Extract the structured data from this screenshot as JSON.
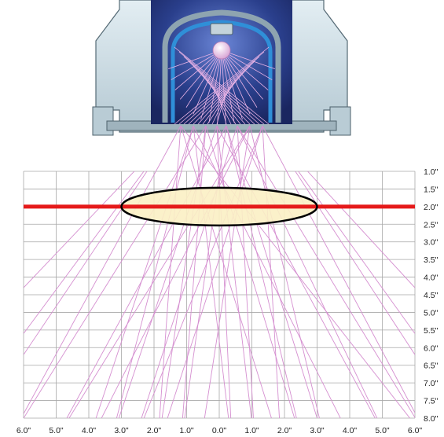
{
  "y_axis": {
    "unit": "inch",
    "labels": [
      "1.0\"",
      "1.5\"",
      "2.0\"",
      "2.5\"",
      "3.0\"",
      "3.5\"",
      "4.0\"",
      "4.5\"",
      "5.0\"",
      "5.5\"",
      "6.0\"",
      "6.5\"",
      "7.0\"",
      "7.5\"",
      "8.0\""
    ]
  },
  "x_axis": {
    "unit": "inch",
    "labels": [
      "6.0\"",
      "5.0\"",
      "4.0\"",
      "3.0\"",
      "2.0\"",
      "1.0\"",
      "0.0\"",
      "1.0\"",
      "2.0\"",
      "3.0\"",
      "4.0\"",
      "5.0\"",
      "6.0\""
    ]
  },
  "highlight": {
    "working_distance": 2.0,
    "line_color": "#e51a1a",
    "ellipse_span": [
      -3.0,
      3.0
    ]
  },
  "light": {
    "ray_color": "#d58fd0",
    "lamp_color": "#f3d8f1",
    "housing_color": "#c9dde6",
    "reflector_color": "#2a3f8c"
  }
}
